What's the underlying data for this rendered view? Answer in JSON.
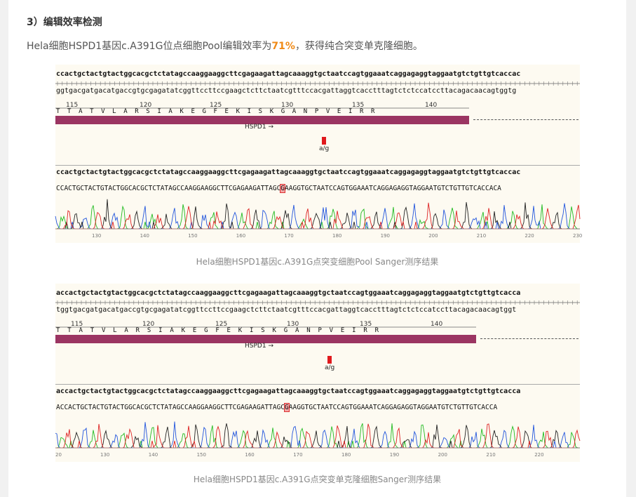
{
  "section": {
    "heading": "3）编辑效率检测",
    "intro_prefix": "Hela细胞HSPD1基因c.A391G位点细胞Pool编辑效率为",
    "intro_percent": "71%",
    "intro_suffix": "，获得纯合突变单克隆细胞。"
  },
  "colors": {
    "accent": "#f08a16",
    "feature_bar": "#9b3562",
    "mutation_marker": "#e0191d",
    "trace_A": "#22bb22",
    "trace_C": "#2255dd",
    "trace_G": "#222222",
    "trace_T": "#dd2222"
  },
  "figures": [
    {
      "caption": "Hela细胞HSPD1基因c.A391G点突变细胞Pool Sanger测序结果",
      "ref_top": "ccactgctactgtactggcacgctctatagccaaggaaggcttcgagaagattagcaaaggtgctaatccagtggaaatcaggagaggtaggaatgtctgttgtcaccac",
      "ref_bottom": "ggtgacgatgacatgaccgtgcgagatatcggttccttccgaagctcttctaatcgtttccacgattaggtcacctttagtctctccatccttacagacaacagtggtg",
      "aa_numbers": [
        "115",
        "120",
        "125",
        "130",
        "135",
        "140"
      ],
      "aa_seq": "T T A T V L A R S I A K E G F E K I S K G A N P V E I R R",
      "feature_label": "HSPD1",
      "feature_arrow": "→",
      "mutation_label": "a/g",
      "ref2": "ccactgctactgtactggcacgctctatagccaaggaaggcttcgagaagattagcaaaggtgctaatccagtggaaatcaggagaggtaggaatgtctgttgtcaccac",
      "read_before": "CCACTGCTACTGTACTGGCACGCTCTATAGCCAAGGAAGGCTTCGAGAAGATTAGC",
      "read_mut": "G",
      "read_after": "AAGGTGCTAATCCAGTGGAAATCAGGAGAGGTAGGAATGTCTGTTGTCACCACA",
      "trace_ticks": [
        "130",
        "140",
        "150",
        "160",
        "170",
        "180",
        "190",
        "200",
        "210",
        "220",
        "230"
      ]
    },
    {
      "caption": "Hela细胞HSPD1基因c.A391G点突变单克隆细胞Sanger测序结果",
      "ref_top": "accactgctactgtactggcacgctctatagccaaggaaggcttcgagaagattagcaaaggtgctaatccagtggaaatcaggagaggtaggaatgtctgttgtcacca",
      "ref_bottom": "tggtgacgatgacatgaccgtgcgagatatcggttccttccgaagctcttctaatcgtttccacgattaggtcacctttagtctctccatccttacagacaacagtggt",
      "aa_numbers": [
        "115",
        "120",
        "125",
        "130",
        "135",
        "140"
      ],
      "aa_seq": "T T A T V L A R S I A K E G F E K I S K G A N P V E I R R",
      "feature_label": "HSPD1",
      "feature_arrow": "→",
      "mutation_label": "a/g",
      "ref2": "accactgctactgtactggcacgctctatagccaaggaaggcttcgagaagattagcaaaggtgctaatccagtggaaatcaggagaggtaggaatgtctgttgtcacca",
      "read_before": "ACCACTGCTACTGTACTGGCACGCTCTATAGCCAAGGAAGGCTTCGAGAAGATTAGC",
      "read_mut": "G",
      "read_after": "AAGGTGCTAATCCAGTGGAAATCAGGAGAGGTAGGAATGTCTGTTGTCACCA",
      "trace_ticks": [
        "20",
        "130",
        "140",
        "150",
        "160",
        "170",
        "180",
        "190",
        "200",
        "210",
        "220"
      ]
    }
  ]
}
